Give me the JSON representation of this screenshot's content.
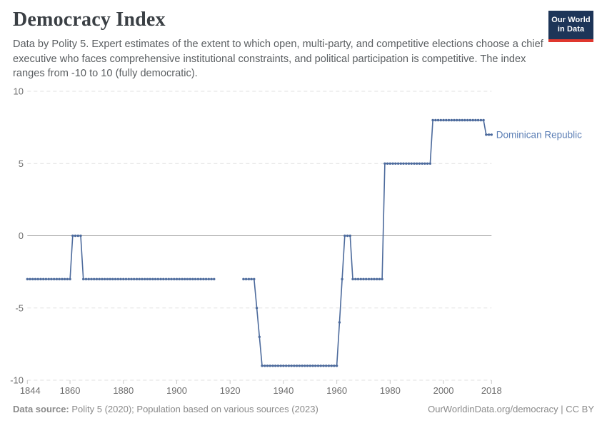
{
  "header": {
    "title": "Democracy Index",
    "subtitle": "Data by Polity 5. Expert estimates of the extent to which open, multi-party, and competitive elections choose a chief executive who faces comprehensive institutional constraints, and political participation is competitive. The index ranges from -10 to 10 (fully democratic).",
    "logo": {
      "line1": "Our World",
      "line2": "in Data",
      "bg_color": "#1d3558",
      "accent_color": "#e0372e"
    }
  },
  "footer": {
    "data_source_label": "Data source:",
    "data_source_text": " Polity 5 (2020); Population based on various sources (2023)",
    "credit": "OurWorldinData.org/democracy | CC BY"
  },
  "chart_data": {
    "type": "line",
    "title": "Democracy Index",
    "xlabel": "",
    "ylabel": "",
    "xlim": [
      1844,
      2018
    ],
    "ylim": [
      -10,
      10
    ],
    "x_ticks": [
      1844,
      1860,
      1880,
      1900,
      1920,
      1940,
      1960,
      1980,
      2000,
      2018
    ],
    "y_ticks": [
      10,
      5,
      0,
      -5,
      -10
    ],
    "grid": "horizontal dashed",
    "zero_line": true,
    "legend_position": "right-of-line-end",
    "colors": {
      "line": "#4c6a9c",
      "series_label": "#5b7eb5",
      "grid": "#e0e0e0",
      "zero_line": "#9e9e9e",
      "tick_text": "#6e6e6e",
      "tick_mark": "#c8c8c8"
    },
    "series": [
      {
        "name": "Dominican Republic",
        "note_runs_format": "[startYear, endYear, indexValue] — one data point per year; separate segments indicate a gap with no data (1915-1924)",
        "segments": [
          {
            "runs": [
              [
                1844,
                1860,
                -3
              ],
              [
                1861,
                1864,
                0
              ],
              [
                1865,
                1914,
                -3
              ]
            ]
          },
          {
            "runs": [
              [
                1925,
                1929,
                -3
              ],
              [
                1930,
                1930,
                -5
              ],
              [
                1931,
                1931,
                -7
              ],
              [
                1932,
                1960,
                -9
              ],
              [
                1961,
                1961,
                -6
              ],
              [
                1962,
                1962,
                -3
              ],
              [
                1963,
                1965,
                0
              ],
              [
                1966,
                1977,
                -3
              ],
              [
                1978,
                1995,
                5
              ],
              [
                1996,
                2015,
                8
              ],
              [
                2016,
                2018,
                7
              ]
            ]
          }
        ]
      }
    ]
  }
}
